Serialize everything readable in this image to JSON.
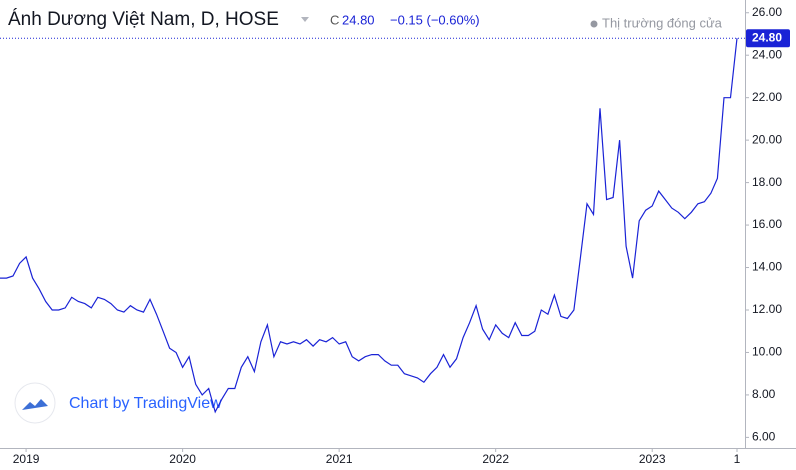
{
  "chart_data": {
    "type": "line",
    "title": "Ánh Dương Việt Nam, D, HOSE",
    "close_prefix": "C",
    "close": {
      "value": 24.8,
      "label": "24.80"
    },
    "change": "−0.15 (−0.60%)",
    "market_status": "Thị trường đóng cửa",
    "watermark": "Chart by TradingView",
    "color": "#1a23d6",
    "grid": false,
    "categories": [
      null,
      null,
      null,
      null,
      "2019",
      null,
      null,
      null,
      null,
      null,
      null,
      null,
      null,
      null,
      null,
      null,
      null,
      null,
      null,
      null,
      null,
      null,
      null,
      null,
      null,
      null,
      null,
      null,
      "2020",
      null,
      null,
      null,
      null,
      null,
      null,
      null,
      null,
      null,
      null,
      null,
      null,
      null,
      null,
      null,
      null,
      null,
      null,
      null,
      null,
      null,
      null,
      null,
      "2021",
      null,
      null,
      null,
      null,
      null,
      null,
      null,
      null,
      null,
      null,
      null,
      null,
      null,
      null,
      null,
      null,
      null,
      null,
      null,
      null,
      null,
      null,
      null,
      "2022",
      null,
      null,
      null,
      null,
      null,
      null,
      null,
      null,
      null,
      null,
      null,
      null,
      null,
      null,
      null,
      null,
      null,
      null,
      null,
      null,
      null,
      null,
      null,
      "2023",
      null,
      null,
      null,
      null,
      null,
      null,
      null,
      null,
      null,
      null,
      null,
      null,
      "1"
    ],
    "values": [
      13.5,
      13.5,
      13.6,
      14.2,
      14.5,
      13.5,
      13.0,
      12.4,
      12.0,
      12.0,
      12.1,
      12.6,
      12.4,
      12.3,
      12.1,
      12.6,
      12.5,
      12.3,
      12.0,
      11.9,
      12.2,
      12.0,
      11.9,
      12.5,
      11.8,
      11.0,
      10.2,
      10.0,
      9.3,
      9.8,
      8.5,
      8.0,
      8.3,
      7.2,
      7.8,
      8.3,
      8.3,
      9.3,
      9.8,
      9.1,
      10.5,
      11.3,
      9.8,
      10.5,
      10.4,
      10.5,
      10.4,
      10.6,
      10.3,
      10.6,
      10.5,
      10.7,
      10.4,
      10.5,
      9.8,
      9.6,
      9.8,
      9.9,
      9.9,
      9.6,
      9.4,
      9.4,
      9.0,
      8.9,
      8.8,
      8.6,
      9.0,
      9.3,
      9.9,
      9.3,
      9.7,
      10.7,
      11.4,
      12.2,
      11.1,
      10.6,
      11.3,
      10.9,
      10.7,
      11.4,
      10.8,
      10.8,
      11.0,
      12.0,
      11.8,
      12.7,
      11.7,
      11.6,
      12.0,
      14.5,
      17.0,
      16.5,
      21.5,
      17.2,
      17.3,
      20.0,
      15.0,
      13.5,
      16.2,
      16.7,
      16.9,
      17.6,
      17.2,
      16.8,
      16.6,
      16.3,
      16.6,
      17.0,
      17.1,
      17.5,
      18.2,
      22.0,
      22.0,
      24.8
    ],
    "ylim": [
      5.5,
      26.6
    ],
    "yticks": [
      {
        "value": 6,
        "label": "6.00"
      },
      {
        "value": 8,
        "label": "8.00"
      },
      {
        "value": 10,
        "label": "10.00"
      },
      {
        "value": 12,
        "label": "12.00"
      },
      {
        "value": 14,
        "label": "14.00"
      },
      {
        "value": 16,
        "label": "16.00"
      },
      {
        "value": 18,
        "label": "18.00"
      },
      {
        "value": 20,
        "label": "20.00"
      },
      {
        "value": 22,
        "label": "22.00"
      },
      {
        "value": 24,
        "label": "24.00"
      },
      {
        "value": 26,
        "label": "26.00"
      }
    ]
  }
}
